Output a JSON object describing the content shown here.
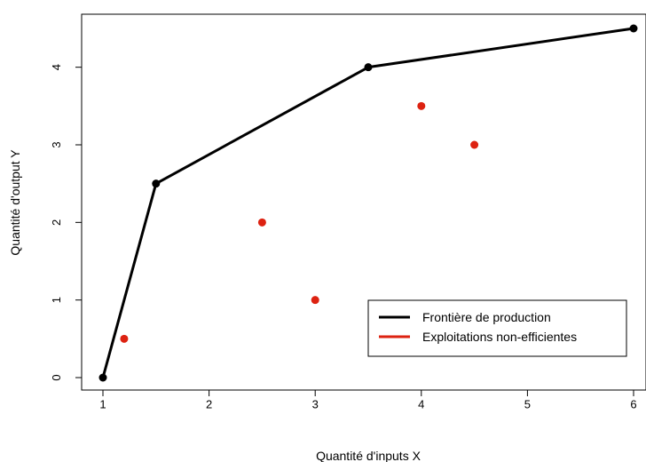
{
  "chart_data": {
    "type": "line",
    "xlabel": "Quantité d'inputs X",
    "ylabel": "Quantité d'output Y",
    "xlim": [
      1,
      6
    ],
    "ylim": [
      0,
      4.5
    ],
    "x_ticks": [
      1,
      2,
      3,
      4,
      5,
      6
    ],
    "y_ticks": [
      0,
      1,
      2,
      3,
      4
    ],
    "grid": false,
    "legend_position": "bottom-right",
    "series": [
      {
        "name": "Frontière de production",
        "kind": "line-with-points",
        "color": "#000000",
        "points": [
          {
            "x": 1,
            "y": 0
          },
          {
            "x": 1.5,
            "y": 2.5
          },
          {
            "x": 3.5,
            "y": 4
          },
          {
            "x": 6,
            "y": 4.5
          }
        ]
      },
      {
        "name": "Exploitations non-efficientes",
        "kind": "points",
        "color": "#dd2211",
        "points": [
          {
            "x": 1.2,
            "y": 0.5
          },
          {
            "x": 2.5,
            "y": 2
          },
          {
            "x": 3,
            "y": 1
          },
          {
            "x": 4,
            "y": 3.5
          },
          {
            "x": 4.5,
            "y": 3
          }
        ]
      }
    ]
  }
}
